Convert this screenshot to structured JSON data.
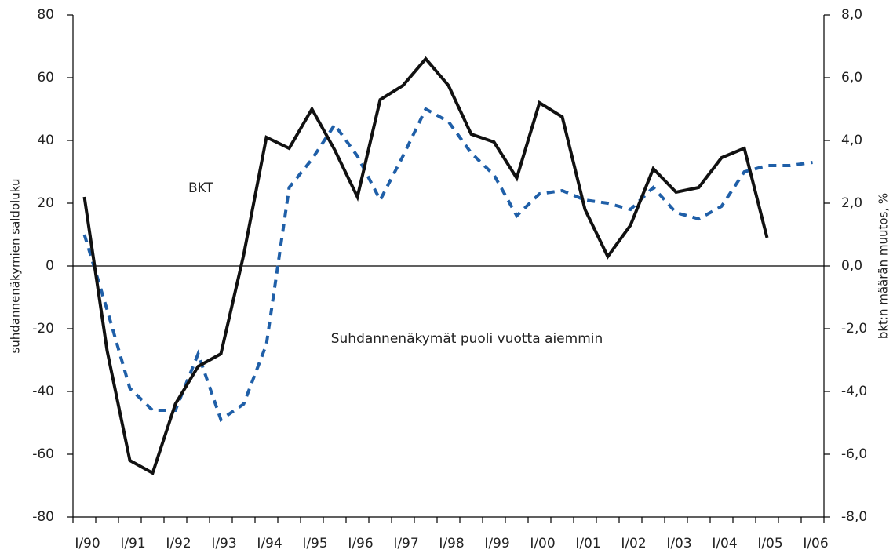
{
  "chart_data": {
    "type": "line",
    "y_label": "suhdannenäkymien saldoluku",
    "y2_label": "bkt:n määrän muutos, %",
    "annotations": [
      "BKT",
      "Suhdannenäkymät puoli vuotta aiemmin"
    ],
    "categories": [
      "I/90",
      null,
      "I/91",
      null,
      "I/92",
      null,
      "I/93",
      null,
      "I/94",
      null,
      "I/95",
      null,
      "I/96",
      null,
      "I/97",
      null,
      "I/98",
      null,
      "I/99",
      null,
      "I/00",
      null,
      "I/01",
      null,
      "I/02",
      null,
      "I/03",
      null,
      "I/04",
      null,
      "I/05",
      null,
      "I/06"
    ],
    "series": [
      {
        "name": "BKT",
        "color": "#111111",
        "axis": "y",
        "values": [
          22,
          -27,
          -62,
          -66,
          -44,
          -32,
          -28,
          3.5,
          41,
          37.5,
          50,
          37,
          22,
          53,
          57.5,
          66,
          57.5,
          42,
          39.5,
          28,
          52,
          47.5,
          18,
          3,
          13,
          31,
          23.5,
          25,
          34.5,
          37.5,
          9,
          null,
          null
        ]
      },
      {
        "name": "Suhdannenäkymät puoli vuotta aiemmin",
        "color": "#1f5fa8",
        "axis": "y2",
        "values": [
          1.0,
          -1.4,
          -3.9,
          -4.6,
          -4.6,
          -2.8,
          -4.9,
          -4.4,
          -2.5,
          2.5,
          3.4,
          4.5,
          3.5,
          2.1,
          3.5,
          5.0,
          4.6,
          3.6,
          2.9,
          1.6,
          2.3,
          2.4,
          2.1,
          2.0,
          1.8,
          2.5,
          1.7,
          1.5,
          1.9,
          3.0,
          3.2,
          3.2,
          3.3
        ]
      }
    ],
    "ylim": [
      -80,
      80
    ],
    "yticks": [
      -80,
      -60,
      -40,
      -20,
      0,
      20,
      40,
      60,
      80
    ],
    "y2lim": [
      -8,
      8
    ],
    "y2ticks": [
      {
        "value": -8,
        "label": "-8,0"
      },
      {
        "value": -6,
        "label": "-6,0"
      },
      {
        "value": -4,
        "label": "-4,0"
      },
      {
        "value": -2,
        "label": "-2,0"
      },
      {
        "value": 0,
        "label": "0,0"
      },
      {
        "value": 2,
        "label": "2,0"
      },
      {
        "value": 4,
        "label": "4,0"
      },
      {
        "value": 6,
        "label": "6,0"
      },
      {
        "value": 8,
        "label": "8,0"
      }
    ]
  }
}
